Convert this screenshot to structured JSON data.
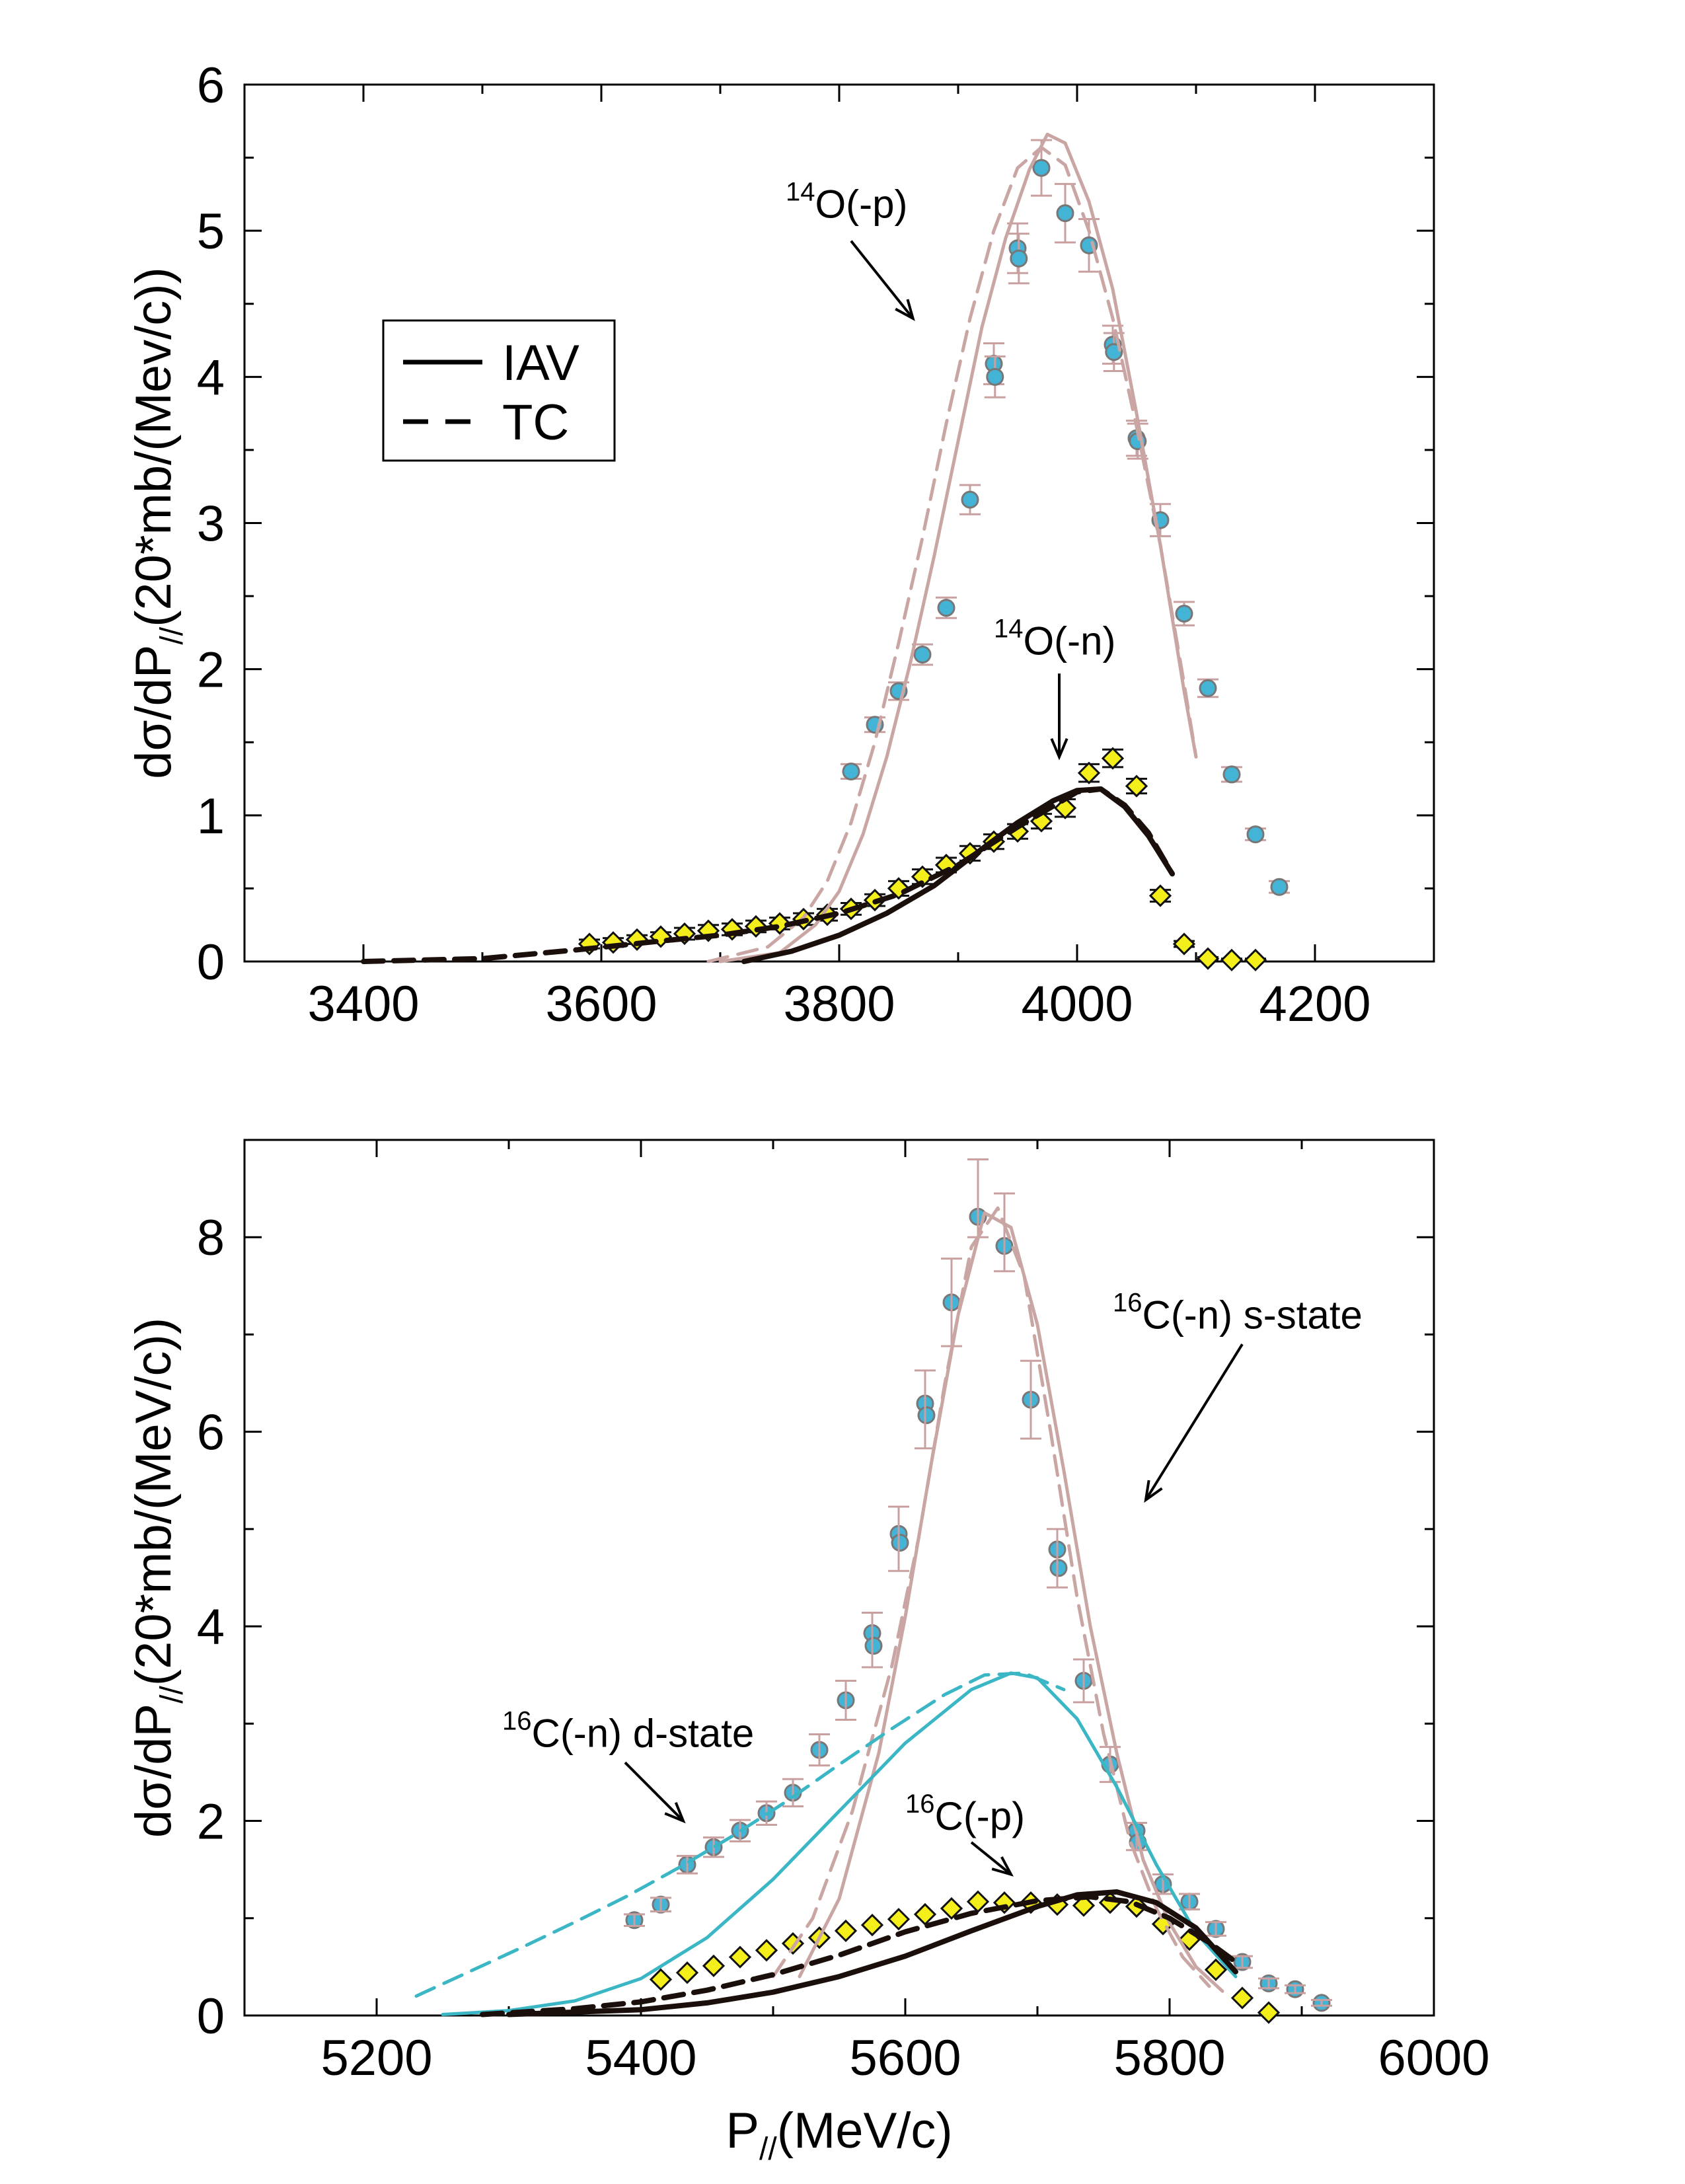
{
  "colors": {
    "proton_curve": "#c9a6a3",
    "neutron_curve": "#1a0f0a",
    "dstate_curve": "#3bb6c4",
    "proton_marker": "#44b4d6",
    "neutron_marker": "#f4ee1a",
    "marker_edge": "#777777",
    "errorbar": "#c9a0a0"
  },
  "chart_data": [
    {
      "type": "scatter",
      "xlim": [
        3300,
        4300
      ],
      "ylim": [
        0,
        6
      ],
      "xticks": [
        "3400",
        "3600",
        "3800",
        "4000",
        "4200"
      ],
      "xtick_values": [
        3400,
        3600,
        3800,
        4000,
        4200
      ],
      "yticks": [
        "0",
        "1",
        "2",
        "3",
        "4",
        "5",
        "6"
      ],
      "ytick_values": [
        0,
        1,
        2,
        3,
        4,
        5,
        6
      ],
      "ylabel": {
        "main": "dσ/dP",
        "sub": "//",
        "tail": "(20*mb/(Mev/c))"
      },
      "legend": {
        "placement": "upper-left",
        "entries": [
          {
            "label": "IAV",
            "style": "solid"
          },
          {
            "label": "TC",
            "style": "dashed"
          }
        ]
      },
      "annotations": [
        {
          "sup": "14",
          "text": "O(-p)",
          "tx": 3755,
          "ty": 5.09,
          "ax": 3810,
          "ay": 4.93,
          "bx": 3862,
          "by": 4.4
        },
        {
          "sup": "14",
          "text": "O(-n)",
          "tx": 3930,
          "ty": 2.1,
          "ax": 3985,
          "ay": 1.97,
          "bx": 3985,
          "by": 1.4
        }
      ],
      "series": [
        {
          "kind": "points",
          "marker": "circle",
          "color": "proton_marker",
          "x": [
            3810,
            3830,
            3850,
            3870,
            3890,
            3910,
            3930,
            3931,
            3950,
            3951,
            3970,
            3990,
            4010,
            4030,
            4031,
            4050,
            4051,
            4070,
            4090,
            4110,
            4130,
            4150,
            4170
          ],
          "y": [
            1.3,
            1.62,
            1.85,
            2.1,
            2.42,
            3.16,
            4.09,
            4.0,
            4.88,
            4.81,
            5.43,
            5.12,
            4.9,
            4.22,
            4.17,
            3.58,
            3.56,
            3.02,
            2.38,
            1.87,
            1.28,
            0.87,
            0.51
          ],
          "err": [
            0.05,
            0.05,
            0.06,
            0.07,
            0.07,
            0.1,
            0.14,
            0.14,
            0.17,
            0.17,
            0.19,
            0.2,
            0.18,
            0.13,
            0.13,
            0.12,
            0.12,
            0.11,
            0.08,
            0.06,
            0.05,
            0.04,
            0.04
          ]
        },
        {
          "kind": "points",
          "marker": "diamond",
          "color": "neutron_marker",
          "x": [
            3590,
            3610,
            3630,
            3650,
            3670,
            3690,
            3710,
            3730,
            3750,
            3770,
            3790,
            3810,
            3830,
            3850,
            3870,
            3890,
            3910,
            3930,
            3950,
            3970,
            3990,
            4010,
            4030,
            4050,
            4070,
            4090,
            4110,
            4130,
            4150
          ],
          "y": [
            0.12,
            0.13,
            0.15,
            0.17,
            0.19,
            0.21,
            0.22,
            0.24,
            0.26,
            0.29,
            0.32,
            0.36,
            0.42,
            0.5,
            0.58,
            0.66,
            0.74,
            0.82,
            0.89,
            0.96,
            1.05,
            1.29,
            1.39,
            1.2,
            0.45,
            0.12,
            0.02,
            0.01,
            0.01
          ],
          "err": [
            0.03,
            0.03,
            0.03,
            0.03,
            0.04,
            0.04,
            0.04,
            0.04,
            0.04,
            0.04,
            0.04,
            0.04,
            0.04,
            0.05,
            0.05,
            0.05,
            0.05,
            0.05,
            0.05,
            0.05,
            0.06,
            0.06,
            0.06,
            0.05,
            0.04,
            0.02,
            0.01,
            0.01,
            0.01
          ]
        },
        {
          "kind": "curve",
          "color": "proton_curve",
          "dash": false,
          "width": 5,
          "x": [
            3700,
            3750,
            3780,
            3800,
            3820,
            3840,
            3860,
            3880,
            3900,
            3920,
            3940,
            3960,
            3975,
            3990,
            4010,
            4030,
            4050,
            4070,
            4090,
            4100
          ],
          "y": [
            0.0,
            0.06,
            0.25,
            0.48,
            0.87,
            1.4,
            2.05,
            2.78,
            3.56,
            4.34,
            4.95,
            5.42,
            5.66,
            5.6,
            5.2,
            4.6,
            3.75,
            2.85,
            1.85,
            1.4
          ]
        },
        {
          "kind": "curve",
          "color": "proton_curve",
          "dash": true,
          "width": 5,
          "x": [
            3690,
            3740,
            3770,
            3790,
            3810,
            3830,
            3850,
            3870,
            3890,
            3910,
            3930,
            3950,
            3970,
            3990,
            4010,
            4030,
            4050,
            4070,
            4090,
            4100
          ],
          "y": [
            0.0,
            0.1,
            0.3,
            0.55,
            0.95,
            1.5,
            2.18,
            2.9,
            3.68,
            4.4,
            5.0,
            5.43,
            5.57,
            5.45,
            5.0,
            4.4,
            3.66,
            2.85,
            1.9,
            1.4
          ]
        },
        {
          "kind": "curve",
          "color": "neutron_curve",
          "dash": false,
          "width": 8,
          "x": [
            3720,
            3760,
            3800,
            3840,
            3880,
            3920,
            3950,
            3980,
            4000,
            4020,
            4040,
            4060,
            4080
          ],
          "y": [
            0.0,
            0.07,
            0.18,
            0.33,
            0.52,
            0.77,
            0.95,
            1.1,
            1.17,
            1.18,
            1.06,
            0.86,
            0.6
          ]
        },
        {
          "kind": "curve",
          "color": "neutron_curve",
          "dash": true,
          "width": 8,
          "x": [
            3400,
            3500,
            3580,
            3650,
            3700,
            3750,
            3800,
            3850,
            3900,
            3950,
            4000,
            4020,
            4040,
            4060,
            4080
          ],
          "y": [
            0.0,
            0.02,
            0.08,
            0.14,
            0.18,
            0.24,
            0.33,
            0.46,
            0.66,
            0.92,
            1.16,
            1.18,
            1.07,
            0.88,
            0.6
          ]
        }
      ]
    },
    {
      "type": "scatter",
      "xlim": [
        5100,
        6000
      ],
      "ylim": [
        0,
        9
      ],
      "xticks": [
        "5200",
        "5400",
        "5600",
        "5800",
        "6000"
      ],
      "xtick_values": [
        5200,
        5400,
        5600,
        5800,
        6000
      ],
      "yticks": [
        "0",
        "2",
        "4",
        "6",
        "8"
      ],
      "ytick_values": [
        0,
        2,
        4,
        6,
        8
      ],
      "ylabel": {
        "main": "dσ/dP",
        "sub": "//",
        "tail": "(20*mb/(MeV/c))"
      },
      "xlabel": {
        "main": "P",
        "sub": "//",
        "tail": "(MeV/c)"
      },
      "annotations": [
        {
          "sup": "16",
          "text": "C(-n) s-state",
          "tx": 5757,
          "ty": 7.06,
          "ax": 5855,
          "ay": 6.9,
          "bx": 5782,
          "by": 5.3
        },
        {
          "sup": "16",
          "text": "C(-n) d-state",
          "tx": 5295,
          "ty": 2.76,
          "ax": 5388,
          "ay": 2.6,
          "bx": 5432,
          "by": 2.0
        },
        {
          "sup": "16",
          "text": "C(-p)",
          "tx": 5600,
          "ty": 1.91,
          "ax": 5650,
          "ay": 1.78,
          "bx": 5680,
          "by": 1.45
        }
      ],
      "series": [
        {
          "kind": "points",
          "marker": "circle",
          "color": "proton_marker",
          "x": [
            5395,
            5415,
            5435,
            5455,
            5475,
            5495,
            5515,
            5535,
            5555,
            5575,
            5576,
            5595,
            5596,
            5615,
            5616,
            5635,
            5655,
            5675,
            5695,
            5715,
            5716,
            5735,
            5755,
            5775,
            5776,
            5795,
            5815,
            5835,
            5855,
            5875,
            5895,
            5915
          ],
          "y": [
            0.98,
            1.14,
            1.55,
            1.73,
            1.9,
            2.08,
            2.29,
            2.73,
            3.24,
            3.93,
            3.8,
            4.95,
            4.86,
            6.29,
            6.17,
            7.33,
            8.21,
            7.91,
            6.33,
            4.79,
            4.6,
            3.44,
            2.58,
            1.9,
            1.78,
            1.35,
            1.17,
            0.89,
            0.55,
            0.33,
            0.27,
            0.13
          ]
        },
        {
          "kind": "points",
          "marker": "diamond",
          "color": "neutron_marker",
          "x": [
            5415,
            5435,
            5455,
            5475,
            5495,
            5515,
            5535,
            5555,
            5575,
            5595,
            5615,
            5635,
            5655,
            5675,
            5695,
            5715,
            5735,
            5755,
            5775,
            5795,
            5815,
            5835,
            5855,
            5875
          ],
          "y": [
            0.37,
            0.44,
            0.51,
            0.6,
            0.67,
            0.74,
            0.8,
            0.87,
            0.93,
            0.99,
            1.04,
            1.1,
            1.17,
            1.16,
            1.16,
            1.14,
            1.13,
            1.16,
            1.12,
            0.94,
            0.78,
            0.47,
            0.18,
            0.03
          ]
        },
        {
          "kind": "errorbars",
          "color": "errorbar",
          "x": [
            5395,
            5415,
            5435,
            5455,
            5475,
            5495,
            5515,
            5535,
            5555,
            5575,
            5595,
            5615,
            5635,
            5655,
            5675,
            5695,
            5715,
            5735,
            5755,
            5775,
            5795,
            5815,
            5835,
            5855,
            5875,
            5895,
            5915
          ],
          "y": [
            0.98,
            1.14,
            1.55,
            1.73,
            1.9,
            2.08,
            2.29,
            2.73,
            3.24,
            3.86,
            4.9,
            6.23,
            7.33,
            8.4,
            8.05,
            6.33,
            4.7,
            3.44,
            2.58,
            1.84,
            1.35,
            1.17,
            0.89,
            0.55,
            0.33,
            0.27,
            0.13
          ],
          "err": [
            0.06,
            0.07,
            0.09,
            0.1,
            0.11,
            0.12,
            0.14,
            0.16,
            0.2,
            0.28,
            0.33,
            0.4,
            0.45,
            0.4,
            0.4,
            0.4,
            0.3,
            0.22,
            0.18,
            0.14,
            0.1,
            0.08,
            0.07,
            0.06,
            0.05,
            0.04,
            0.03
          ]
        },
        {
          "kind": "curve",
          "color": "proton_curve",
          "dash": false,
          "width": 5,
          "x": [
            5520,
            5550,
            5580,
            5600,
            5620,
            5640,
            5660,
            5680,
            5700,
            5720,
            5740,
            5760,
            5780,
            5800,
            5820,
            5840
          ],
          "y": [
            0.4,
            1.2,
            2.7,
            4.1,
            5.7,
            7.2,
            8.25,
            8.1,
            7.1,
            5.6,
            4.0,
            2.7,
            1.6,
            0.95,
            0.5,
            0.25
          ]
        },
        {
          "kind": "curve",
          "color": "proton_curve",
          "dash": true,
          "width": 5,
          "x": [
            5500,
            5530,
            5560,
            5590,
            5610,
            5630,
            5650,
            5670,
            5690,
            5710,
            5730,
            5750,
            5770,
            5790,
            5810,
            5830
          ],
          "y": [
            0.4,
            1.0,
            2.1,
            3.6,
            4.9,
            6.5,
            7.9,
            8.3,
            7.6,
            6.0,
            4.3,
            2.9,
            1.8,
            1.1,
            0.6,
            0.3
          ]
        },
        {
          "kind": "curve",
          "color": "dstate_curve",
          "dash": false,
          "width": 5,
          "x": [
            5250,
            5300,
            5350,
            5400,
            5450,
            5500,
            5550,
            5600,
            5650,
            5680,
            5700,
            5730,
            5760,
            5790,
            5820,
            5850
          ],
          "y": [
            0.01,
            0.05,
            0.15,
            0.38,
            0.8,
            1.4,
            2.1,
            2.8,
            3.35,
            3.52,
            3.47,
            3.05,
            2.35,
            1.55,
            0.85,
            0.4
          ]
        },
        {
          "kind": "curve",
          "color": "dstate_curve",
          "dash": true,
          "width": 5,
          "x": [
            5230,
            5270,
            5310,
            5350,
            5390,
            5430,
            5470,
            5510,
            5550,
            5590,
            5630,
            5660,
            5690,
            5720
          ],
          "y": [
            0.2,
            0.45,
            0.7,
            0.96,
            1.23,
            1.53,
            1.85,
            2.2,
            2.58,
            2.95,
            3.3,
            3.5,
            3.52,
            3.35
          ]
        },
        {
          "kind": "curve",
          "color": "neutron_curve",
          "dash": false,
          "width": 8,
          "x": [
            5300,
            5400,
            5450,
            5500,
            5550,
            5600,
            5650,
            5700,
            5730,
            5760,
            5790,
            5820,
            5850
          ],
          "y": [
            0.01,
            0.06,
            0.13,
            0.24,
            0.4,
            0.61,
            0.87,
            1.12,
            1.24,
            1.27,
            1.16,
            0.9,
            0.45
          ]
        },
        {
          "kind": "curve",
          "color": "neutron_curve",
          "dash": true,
          "width": 8,
          "x": [
            5280,
            5350,
            5400,
            5450,
            5500,
            5550,
            5600,
            5650,
            5700,
            5740,
            5770,
            5800,
            5830,
            5850
          ],
          "y": [
            0.01,
            0.07,
            0.14,
            0.26,
            0.42,
            0.62,
            0.86,
            1.05,
            1.18,
            1.22,
            1.17,
            1.0,
            0.75,
            0.55
          ]
        }
      ]
    }
  ]
}
